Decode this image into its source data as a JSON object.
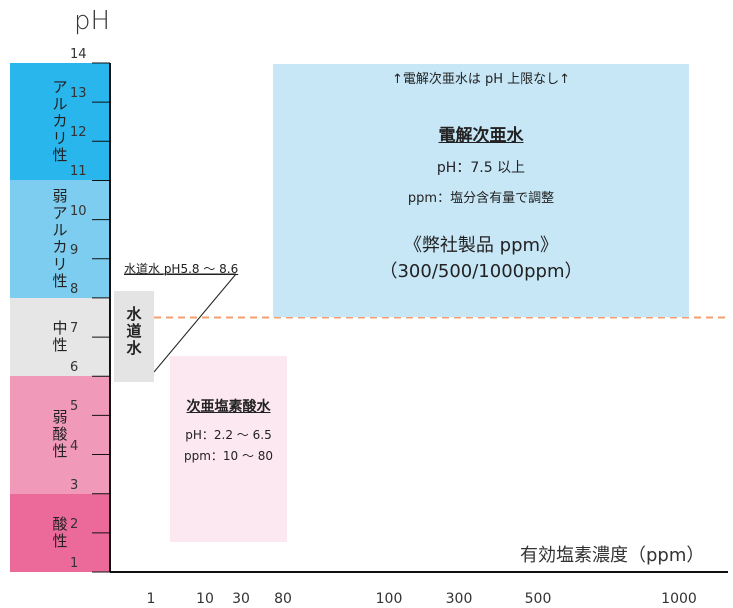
{
  "chart_data": {
    "type": "table",
    "ylabel": "pH",
    "xlabel": "有効塩素濃度（ppm）",
    "y_ticks": [
      "1",
      "2",
      "3",
      "4",
      "5",
      "6",
      "7",
      "8",
      "9",
      "10",
      "11",
      "12",
      "13",
      "14"
    ],
    "x_ticks": [
      "1",
      "10",
      "30",
      "80",
      "100",
      "300",
      "500",
      "1000"
    ],
    "bands": [
      {
        "label": "アルカリ性",
        "ph_range": [
          11,
          14
        ],
        "color": "#29b6ec"
      },
      {
        "label": "弱アルカリ性",
        "ph_range": [
          8,
          11
        ],
        "color": "#7ccdf0"
      },
      {
        "label": "中性",
        "ph_range": [
          6,
          8
        ],
        "color": "#e6e6e6"
      },
      {
        "label": "弱酸性",
        "ph_range": [
          3,
          6
        ],
        "color": "#f199b9"
      },
      {
        "label": "酸性",
        "ph_range": [
          1,
          3
        ],
        "color": "#ec6a9a"
      }
    ],
    "reference_line": {
      "ph": 7.5,
      "color": "#f0a070",
      "style": "dashed"
    },
    "regions": [
      {
        "id": "tap_water",
        "label": "水道水",
        "note": "水道水 pH5.8 ～ 8.6",
        "color": "#e4e4e4"
      },
      {
        "id": "electrolyzed",
        "label": "電解次亜水",
        "header": "↑電解次亜水は pH 上限なし↑",
        "ph_text": "pH：7.5 以上",
        "ppm_text": "ppm：塩分含有量で調整",
        "product_line1": "《弊社製品 ppm》",
        "product_line2": "（300/500/1000ppm）",
        "color": "#c7e7f7"
      },
      {
        "id": "hypochlorous",
        "label": "次亜塩素酸水",
        "ph_text": "pH：2.2 ～ 6.5",
        "ppm_text": "ppm：10 ～ 80",
        "color": "#fce8f0"
      }
    ]
  }
}
